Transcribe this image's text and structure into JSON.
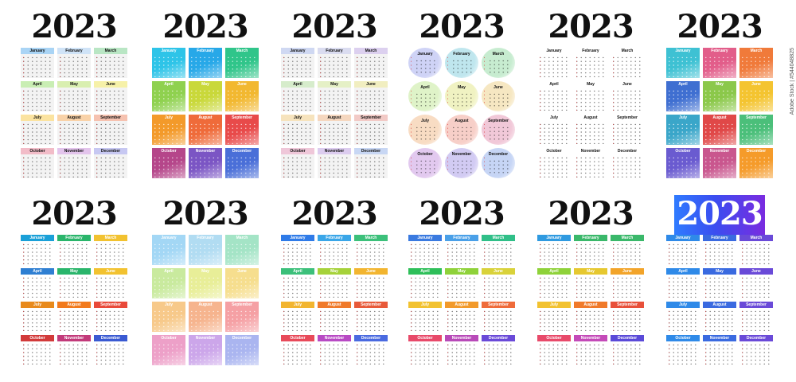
{
  "year_label": "2023",
  "stock_id": "Adobe Stock | #544048825",
  "months": [
    "January",
    "February",
    "March",
    "April",
    "May",
    "June",
    "July",
    "August",
    "September",
    "October",
    "November",
    "December"
  ],
  "calendars": [
    {
      "id": "c1",
      "style": "header",
      "colors": [
        "#e8e8e8",
        "#e8e8e8",
        "#e8e8e8"
      ],
      "palette": [
        "#a9d4f5",
        "#cfe3f7",
        "#b9e6c4",
        "#c9eeb3",
        "#d9efb0",
        "#f6f1a8",
        "#fbe3a0",
        "#f9d2a8",
        "#f6c2b0",
        "#f2bcc8",
        "#e3c4ec",
        "#c7c8f2"
      ]
    },
    {
      "id": "c2",
      "style": "fill",
      "palette": [
        "#2ec4e8",
        "#27a8e8",
        "#30c58a",
        "#8fd14f",
        "#c9d83a",
        "#f2b830",
        "#f39a2a",
        "#ef6b3a",
        "#e84a4a",
        "#b5468a",
        "#7b55c4",
        "#4a6fd8"
      ]
    },
    {
      "id": "c3",
      "style": "header",
      "palette": [
        "#cfd8f2",
        "#dadcf0",
        "#dcd0ef",
        "#d6eccb",
        "#e5f0c6",
        "#f1eec0",
        "#f6e3bd",
        "#f5d7bf",
        "#f2cac6",
        "#efc7d9",
        "#dcccef",
        "#c8d7f4"
      ]
    },
    {
      "id": "c4",
      "style": "circle",
      "palette": [
        "#cfd3f6",
        "#bfe6ee",
        "#c7ecd0",
        "#dff3c8",
        "#f0f2c2",
        "#f6e7c2",
        "#f8dcc3",
        "#f7cfc8",
        "#f1c8d8",
        "#e2c9ef",
        "#d2cbf3",
        "#c6d5f5"
      ]
    },
    {
      "id": "c5",
      "style": "plain",
      "palette": [
        "#ffffff",
        "#ffffff",
        "#ffffff",
        "#ffffff",
        "#ffffff",
        "#ffffff",
        "#ffffff",
        "#ffffff",
        "#ffffff",
        "#ffffff",
        "#ffffff",
        "#ffffff"
      ]
    },
    {
      "id": "c6",
      "style": "fill",
      "palette": [
        "#3ec1d3",
        "#e25d8a",
        "#f07a3a",
        "#3f6fd1",
        "#8bc84a",
        "#f4c430",
        "#3aa6c9",
        "#e04848",
        "#4bbf7a",
        "#6a5bd0",
        "#c9568e",
        "#f59b2a"
      ]
    },
    {
      "id": "c7",
      "style": "bar",
      "palette": [
        "#1aa0d8",
        "#2ab56b",
        "#f2c230",
        "#2f7fd2",
        "#2ab56b",
        "#f2c230",
        "#e88a1c",
        "#f27a1c",
        "#e94a3a",
        "#d23a3a",
        "#c23a7a",
        "#3a5ad2"
      ]
    },
    {
      "id": "c8",
      "style": "fill",
      "palette": [
        "#a3d7f5",
        "#b1dcf2",
        "#a4e4c6",
        "#c9ea9e",
        "#e8ee98",
        "#f6de8e",
        "#f7c98a",
        "#f6b48e",
        "#f5a0a4",
        "#eda0c8",
        "#cca6ea",
        "#aab5f0"
      ]
    },
    {
      "id": "c9",
      "style": "bar",
      "palette": [
        "#2f7be8",
        "#3aa6e8",
        "#3cc07a",
        "#3cc07a",
        "#a6d23a",
        "#f2b530",
        "#f2b530",
        "#f07a2a",
        "#e85a3a",
        "#e84a5a",
        "#b84ac4",
        "#4a6ae0"
      ]
    },
    {
      "id": "c10",
      "style": "bar",
      "palette": [
        "#3a7ae0",
        "#4aa0e8",
        "#30bf88",
        "#2fbf5a",
        "#8fd23a",
        "#d9d23a",
        "#f2c230",
        "#f29a2a",
        "#ef6b3a",
        "#e84a6a",
        "#b84ab8",
        "#6a4ad8"
      ]
    },
    {
      "id": "c11",
      "style": "bar",
      "palette": [
        "#2f9ae0",
        "#3ab86a",
        "#3ab86a",
        "#8fd23a",
        "#e6c830",
        "#f2a42a",
        "#f2c230",
        "#f07a2a",
        "#e8503a",
        "#e84a6a",
        "#c44ab8",
        "#5a4ad8"
      ]
    },
    {
      "id": "c12",
      "style": "bar",
      "banner": true,
      "palette": [
        "#2f8ae8",
        "#3a6ae0",
        "#6a4ad8",
        "#2f8ae8",
        "#3a6ae0",
        "#6a4ad8",
        "#2f8ae8",
        "#3a6ae0",
        "#6a4ad8",
        "#2f8ae8",
        "#3a6ae0",
        "#6a4ad8"
      ]
    }
  ]
}
